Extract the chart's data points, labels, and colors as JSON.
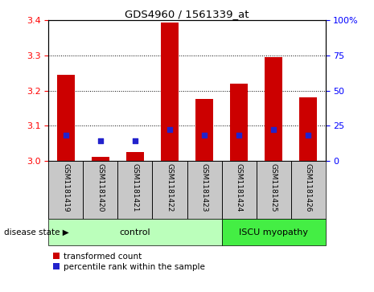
{
  "title": "GDS4960 / 1561339_at",
  "samples": [
    "GSM1181419",
    "GSM1181420",
    "GSM1181421",
    "GSM1181422",
    "GSM1181423",
    "GSM1181424",
    "GSM1181425",
    "GSM1181426"
  ],
  "transformed_count": [
    3.245,
    3.01,
    3.025,
    3.395,
    3.175,
    3.22,
    3.295,
    3.18
  ],
  "percentile_rank": [
    18,
    14,
    14,
    22,
    18,
    18,
    22,
    18
  ],
  "ylim_left": [
    3.0,
    3.4
  ],
  "ylim_right": [
    0,
    100
  ],
  "yticks_left": [
    3.0,
    3.1,
    3.2,
    3.3,
    3.4
  ],
  "yticks_right": [
    0,
    25,
    50,
    75,
    100
  ],
  "bar_color": "#cc0000",
  "dot_color": "#2222cc",
  "bar_width": 0.5,
  "control_label": "control",
  "iscu_label": "ISCU myopathy",
  "control_color": "#bbffbb",
  "iscu_color": "#44ee44",
  "bg_color": "#c8c8c8",
  "disease_state_label": "disease state",
  "legend_red_label": "transformed count",
  "legend_blue_label": "percentile rank within the sample"
}
